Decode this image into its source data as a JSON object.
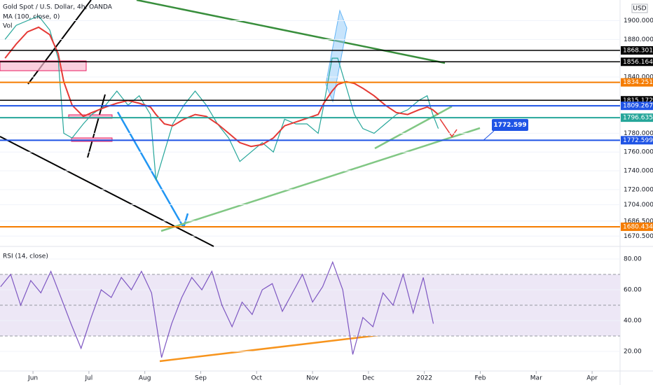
{
  "chart_data": [
    {
      "type": "line",
      "title": "Gold Spot / U.S. Dollar, 4h, OANDA",
      "subtitle": "MA (100, close, 0)",
      "annotation": "Vol",
      "currency": "USD",
      "x": [
        -0.5,
        -0.3,
        -0.1,
        0.1,
        0.3,
        0.45,
        0.55,
        0.7,
        0.9,
        1.05,
        1.3,
        1.5,
        1.7,
        1.9,
        2.1,
        2.2,
        2.35,
        2.5,
        2.7,
        2.9,
        3.1,
        3.3,
        3.5,
        3.7,
        3.9,
        4.1,
        4.3,
        4.5,
        4.7,
        4.9,
        5.1,
        5.2,
        5.35,
        5.45,
        5.6,
        5.75,
        5.9,
        6.1,
        6.3,
        6.5,
        6.7,
        6.9,
        7.05,
        7.15,
        7.25
      ],
      "series": [
        {
          "color": "#26a69a",
          "values": [
            1880,
            1895,
            1900,
            1905,
            1890,
            1860,
            1780,
            1775,
            1790,
            1800,
            1810,
            1825,
            1810,
            1820,
            1800,
            1730,
            1760,
            1790,
            1810,
            1825,
            1810,
            1790,
            1775,
            1750,
            1760,
            1770,
            1760,
            1795,
            1790,
            1790,
            1780,
            1810,
            1860,
            1860,
            1830,
            1800,
            1785,
            1780,
            1790,
            1800,
            1805,
            1815,
            1820,
            1800,
            1785
          ]
        },
        {
          "name": "MA (100, close, 0)",
          "color": "#e53935",
          "values": [
            1860,
            1875,
            1888,
            1893,
            1885,
            1865,
            1835,
            1810,
            1798,
            1802,
            1808,
            1812,
            1815,
            1812,
            1808,
            1800,
            1790,
            1788,
            1795,
            1800,
            1798,
            1790,
            1780,
            1770,
            1766,
            1768,
            1775,
            1788,
            1792,
            1796,
            1800,
            1812,
            1825,
            1832,
            1835,
            1833,
            1828,
            1820,
            1810,
            1802,
            1800,
            1805,
            1808,
            1805,
            1800
          ]
        }
      ],
      "levels": [
        {
          "value": 1868.301,
          "color": "#000000"
        },
        {
          "value": 1856.164,
          "color": "#000000"
        },
        {
          "value": 1834.251,
          "color": "#f57c00"
        },
        {
          "value": 1815.172,
          "color": "#000000"
        },
        {
          "value": 1809.267,
          "color": "#1e53e5"
        },
        {
          "value": 1796.635,
          "color": "#26a69a"
        },
        {
          "value": 1772.599,
          "color": "#1e53e5"
        },
        {
          "value": 1680.434,
          "color": "#f57c00"
        }
      ],
      "xlim": [
        -0.59,
        10.5
      ],
      "xticks": [
        {
          "value": 0,
          "label": "Jun"
        },
        {
          "value": 1,
          "label": "Jul"
        },
        {
          "value": 2,
          "label": "Aug"
        },
        {
          "value": 3,
          "label": "Sep"
        },
        {
          "value": 4,
          "label": "Oct"
        },
        {
          "value": 5,
          "label": "Nov"
        },
        {
          "value": 6,
          "label": "Dec"
        },
        {
          "value": 7,
          "label": "2022"
        },
        {
          "value": 8,
          "label": "Feb"
        },
        {
          "value": 9,
          "label": "Mar"
        },
        {
          "value": 10,
          "label": "Apr"
        }
      ],
      "ylim": [
        1661,
        1922
      ],
      "yticks": [
        {
          "value": 1900,
          "label": "1900.000"
        },
        {
          "value": 1880,
          "label": "1880.000"
        },
        {
          "value": 1840,
          "label": "1840.000"
        },
        {
          "value": 1780,
          "label": "1780.000"
        },
        {
          "value": 1760,
          "label": "1760.000"
        },
        {
          "value": 1740,
          "label": "1740.000"
        },
        {
          "value": 1720,
          "label": "1720.000"
        },
        {
          "value": 1704,
          "label": "1704.000"
        },
        {
          "value": 1686.5,
          "label": "1686.500"
        },
        {
          "value": 1670.5,
          "label": "1670.500"
        }
      ]
    },
    {
      "type": "line",
      "title": "RSI (14, close)",
      "x": [
        -0.58,
        -0.4,
        -0.22,
        -0.04,
        0.14,
        0.32,
        0.5,
        0.68,
        0.86,
        1.04,
        1.22,
        1.4,
        1.58,
        1.76,
        1.94,
        2.12,
        2.3,
        2.48,
        2.66,
        2.84,
        3.02,
        3.2,
        3.38,
        3.56,
        3.74,
        3.92,
        4.1,
        4.28,
        4.46,
        4.64,
        4.82,
        5,
        5.18,
        5.36,
        5.54,
        5.72,
        5.9,
        6.08,
        6.26,
        6.44,
        6.62,
        6.8,
        6.98,
        7.16
      ],
      "series": [
        {
          "color": "#7e57c2",
          "values": [
            62,
            70,
            50,
            66,
            58,
            72,
            55,
            38,
            22,
            42,
            60,
            55,
            68,
            60,
            72,
            58,
            16,
            38,
            55,
            68,
            60,
            72,
            50,
            36,
            52,
            44,
            60,
            64,
            46,
            58,
            70,
            52,
            62,
            78,
            60,
            18,
            42,
            36,
            58,
            50,
            70,
            45,
            68,
            38
          ]
        }
      ],
      "levels": [
        70,
        50,
        30
      ],
      "band_color": "#ede7f6",
      "xlim": [
        -0.59,
        10.5
      ],
      "ylim": [
        7.3,
        86.8
      ],
      "yticks": [
        {
          "value": 80,
          "label": "80.00"
        },
        {
          "value": 60,
          "label": "60.00"
        },
        {
          "value": 40,
          "label": "40.00"
        },
        {
          "value": 20,
          "label": "20.00"
        }
      ]
    }
  ]
}
